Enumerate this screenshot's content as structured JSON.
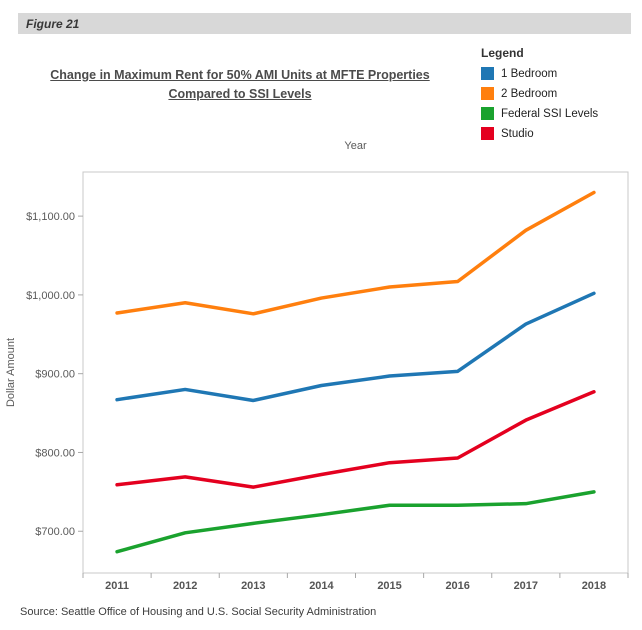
{
  "figure_label": "Figure 21",
  "title": {
    "line1": "Change in Maximum Rent for 50% AMI Units at MFTE Properties",
    "line2": "Compared to SSI Levels"
  },
  "legend": {
    "title": "Legend",
    "items": [
      {
        "label": "1 Bedroom",
        "color": "#1f77b4"
      },
      {
        "label": "2 Bedroom",
        "color": "#ff7f0e"
      },
      {
        "label": "Federal SSI Levels",
        "color": "#1aa22e"
      },
      {
        "label": "Studio",
        "color": "#e4001f"
      }
    ]
  },
  "source": "Source: Seattle Office of Housing and U.S. Social Security Administration",
  "chart_data": {
    "type": "line",
    "title": "Change in Maximum Rent for 50% AMI Units at MFTE Properties Compared to SSI Levels",
    "xlabel": "Year",
    "ylabel": "Dollar Amount",
    "categories": [
      "2011",
      "2012",
      "2013",
      "2014",
      "2015",
      "2016",
      "2017",
      "2018"
    ],
    "y_tick_labels": [
      "$700.00",
      "$800.00",
      "$900.00",
      "$1,000.00",
      "$1,100.00"
    ],
    "y_tick_values": [
      700,
      800,
      900,
      1000,
      1100
    ],
    "ylim": [
      647,
      1156
    ],
    "grid": false,
    "legend_position": "top-right",
    "series": [
      {
        "name": "1 Bedroom",
        "color": "#1f77b4",
        "values": [
          867,
          880,
          866,
          885,
          897,
          903,
          963,
          1002
        ]
      },
      {
        "name": "2 Bedroom",
        "color": "#ff7f0e",
        "values": [
          977,
          990,
          976,
          996,
          1010,
          1017,
          1082,
          1130
        ]
      },
      {
        "name": "Federal SSI Levels",
        "color": "#1aa22e",
        "values": [
          674,
          698,
          710,
          721,
          733,
          733,
          735,
          750
        ]
      },
      {
        "name": "Studio",
        "color": "#e4001f",
        "values": [
          759,
          769,
          756,
          772,
          787,
          793,
          841,
          877
        ]
      }
    ]
  }
}
